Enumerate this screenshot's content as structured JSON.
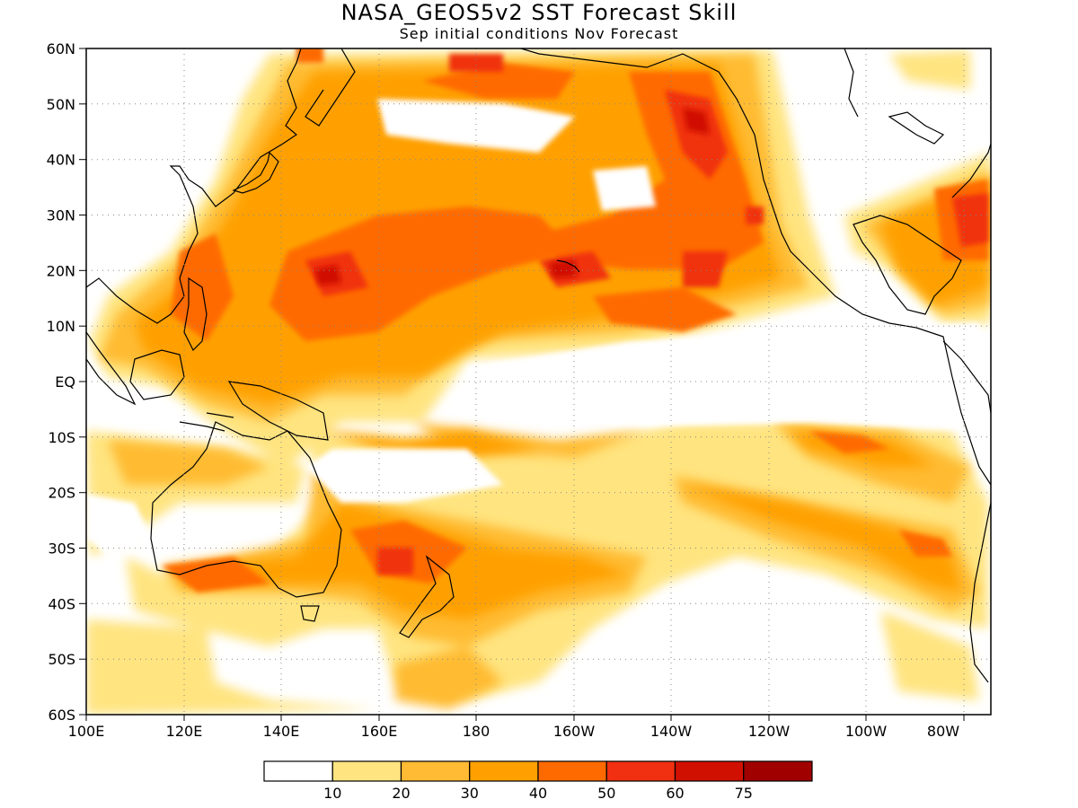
{
  "title": "NASA_GEOS5v2 SST Forecast Skill",
  "subtitle": "Sep initial conditions  Nov Forecast",
  "map": {
    "lon_range": [
      "100E",
      "70W"
    ],
    "lat_range": [
      "60S",
      "60N"
    ],
    "gridlines": "dotted",
    "lat_labels": [
      "60N",
      "50N",
      "40N",
      "30N",
      "20N",
      "10N",
      "EQ",
      "10S",
      "20S",
      "30S",
      "40S",
      "50S",
      "60S"
    ],
    "lon_labels": [
      "100E",
      "120E",
      "140E",
      "160E",
      "180",
      "160W",
      "140W",
      "120W",
      "100W",
      "80W"
    ]
  },
  "colorbar": {
    "labels": [
      "10",
      "20",
      "30",
      "40",
      "50",
      "60",
      "75"
    ],
    "colors": [
      "#ffffff",
      "#ffe480",
      "#ffbb33",
      "#ffa000",
      "#ff6a00",
      "#f03010",
      "#d01000",
      "#a00000"
    ]
  }
}
